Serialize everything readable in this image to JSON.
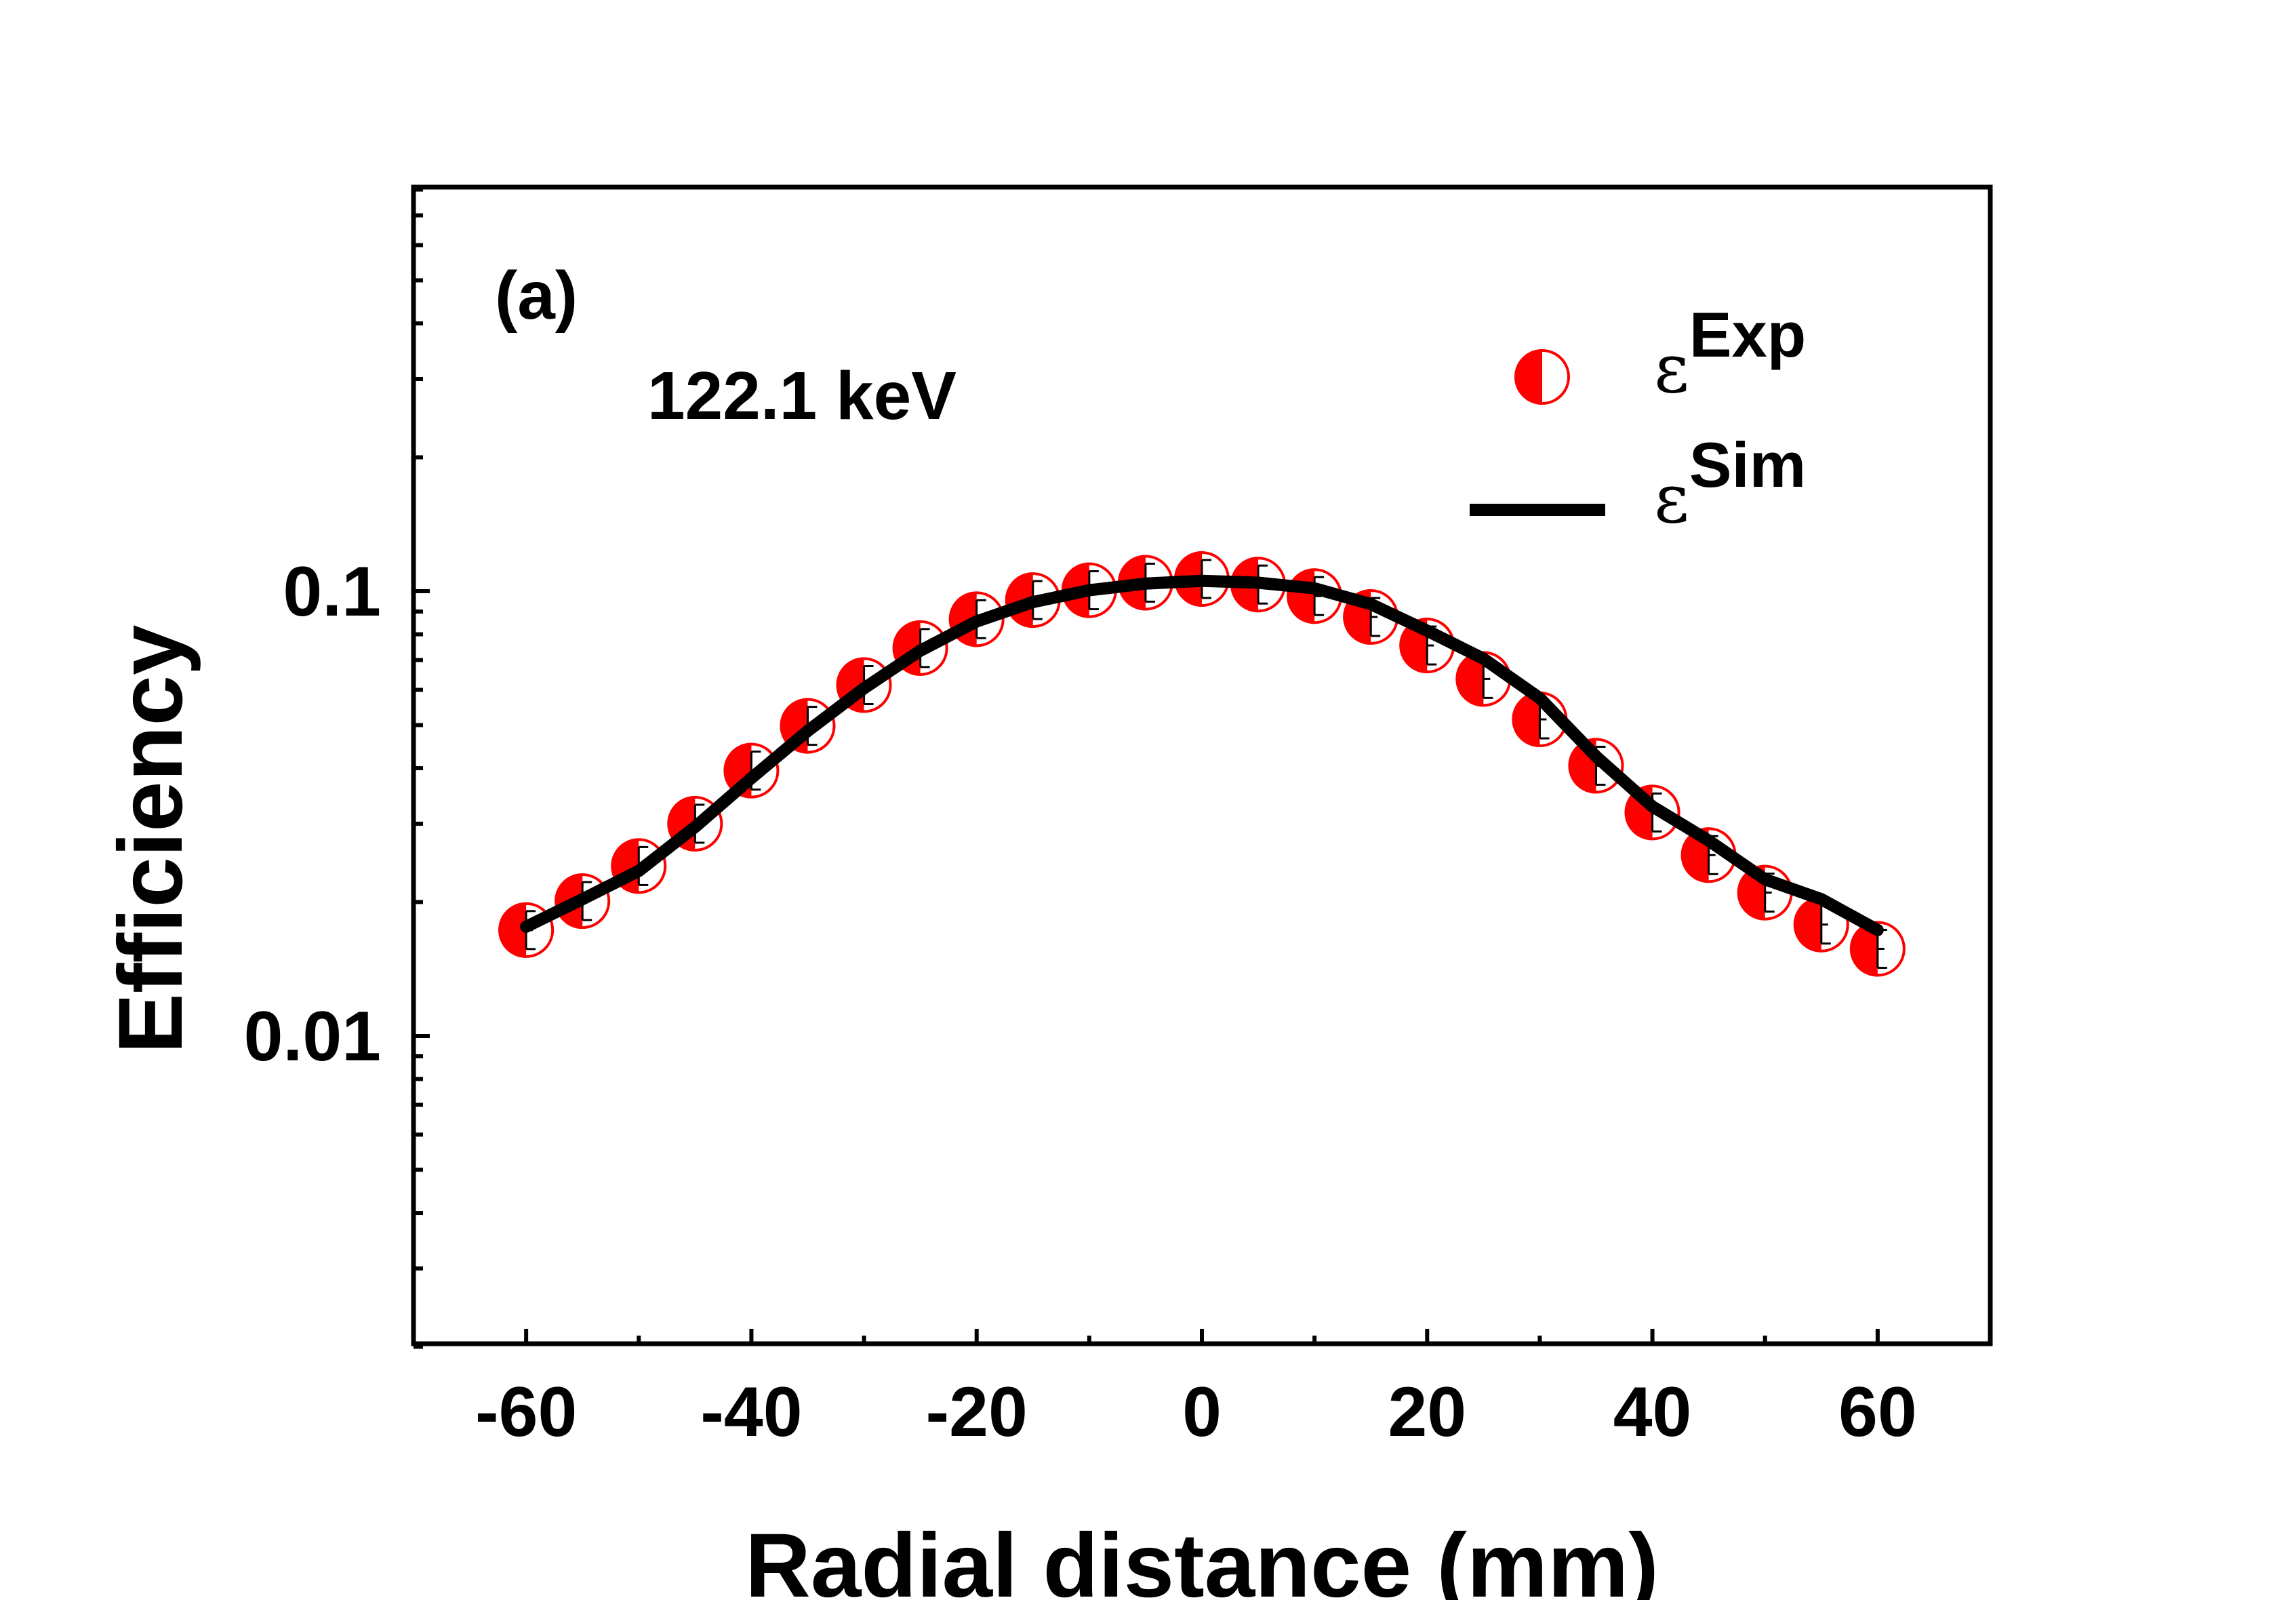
{
  "chart_data": {
    "type": "scatter",
    "yscale": "log",
    "xlabel": "Radial distance (mm)",
    "ylabel": "Efficiency",
    "xlim": [
      -70,
      70
    ],
    "ylim": [
      0.002,
      0.8
    ],
    "x_ticks": [
      -60,
      -40,
      -20,
      0,
      20,
      40,
      60
    ],
    "x_tick_labels": [
      "-60",
      "-40",
      "-20",
      "0",
      "20",
      "40",
      "60"
    ],
    "y_ticks": [
      0.01,
      0.1
    ],
    "y_tick_labels": [
      "0.01",
      "0.1"
    ],
    "panel_label": "(a)",
    "energy_label": "122.1 keV",
    "legend": {
      "position": "top-right",
      "entries": [
        {
          "symbol": "ε",
          "sup": "Exp",
          "style": "marker"
        },
        {
          "symbol": "ε",
          "sup": "Sim",
          "style": "line"
        }
      ]
    },
    "series": [
      {
        "name": "εExp",
        "style": "marker",
        "color": "#ff0000",
        "x": [
          -60,
          -55,
          -50,
          -45,
          -40,
          -35,
          -30,
          -25,
          -20,
          -15,
          -10,
          -5,
          0,
          5,
          10,
          15,
          20,
          25,
          30,
          35,
          40,
          45,
          50,
          55,
          60
        ],
        "y": [
          0.0173,
          0.0201,
          0.0241,
          0.03,
          0.0395,
          0.0498,
          0.0615,
          0.0745,
          0.0865,
          0.0955,
          0.1005,
          0.1045,
          0.1065,
          0.1035,
          0.0975,
          0.0875,
          0.0755,
          0.0635,
          0.0515,
          0.0405,
          0.0318,
          0.0255,
          0.021,
          0.0178,
          0.0157
        ]
      },
      {
        "name": "εSim",
        "style": "line",
        "color": "#000000",
        "x": [
          -60,
          -55,
          -50,
          -45,
          -40,
          -35,
          -30,
          -25,
          -20,
          -15,
          -10,
          -5,
          0,
          5,
          10,
          15,
          20,
          25,
          30,
          35,
          40,
          45,
          50,
          55,
          60
        ],
        "y": [
          0.0176,
          0.0203,
          0.0235,
          0.0295,
          0.038,
          0.0485,
          0.0605,
          0.0735,
          0.0855,
          0.0945,
          0.1005,
          0.104,
          0.1055,
          0.1045,
          0.1015,
          0.0935,
          0.0815,
          0.0705,
          0.0575,
          0.0425,
          0.0328,
          0.0275,
          0.0225,
          0.0203,
          0.0173
        ]
      }
    ]
  }
}
